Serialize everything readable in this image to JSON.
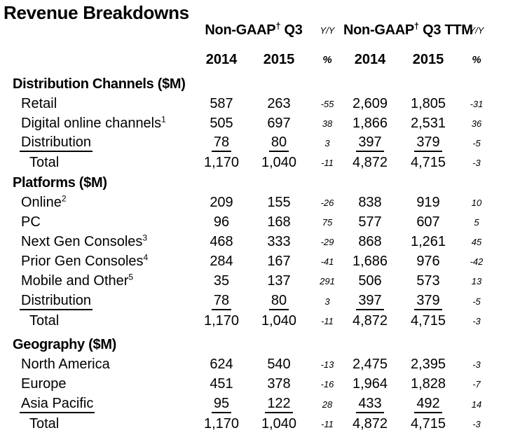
{
  "title": "Revenue Breakdowns",
  "header": {
    "group1": {
      "name": "Non-GAAP",
      "dagger": "†",
      "period": " Q3"
    },
    "group2": {
      "name": "Non-GAAP",
      "dagger": "†",
      "period": " Q3 TTM"
    },
    "yoy": "Y/Y",
    "percent": "%",
    "years": [
      "2014",
      "2015",
      "2014",
      "2015"
    ]
  },
  "sections": [
    {
      "label": "Distribution Channels ($M)",
      "rows": [
        {
          "label": "Retail",
          "sup": "",
          "underline": false,
          "total": false,
          "values": [
            "587",
            "263",
            "-55",
            "2,609",
            "1,805",
            "-31"
          ]
        },
        {
          "label": "Digital online channels",
          "sup": "1",
          "underline": false,
          "total": false,
          "values": [
            "505",
            "697",
            "38",
            "1,866",
            "2,531",
            "36"
          ]
        },
        {
          "label": "Distribution",
          "sup": "",
          "underline": true,
          "total": false,
          "values": [
            "78",
            "80",
            "3",
            "397",
            "379",
            "-5"
          ]
        },
        {
          "label": "Total",
          "sup": "",
          "underline": false,
          "total": true,
          "values": [
            "1,170",
            "1,040",
            "-11",
            "4,872",
            "4,715",
            "-3"
          ]
        }
      ]
    },
    {
      "label": "Platforms ($M)",
      "rows": [
        {
          "label": "Online",
          "sup": "2",
          "underline": false,
          "total": false,
          "values": [
            "209",
            "155",
            "-26",
            "838",
            "919",
            "10"
          ]
        },
        {
          "label": "PC",
          "sup": "",
          "underline": false,
          "total": false,
          "values": [
            "96",
            "168",
            "75",
            "577",
            "607",
            "5"
          ]
        },
        {
          "label": "Next Gen Consoles",
          "sup": "3",
          "underline": false,
          "total": false,
          "values": [
            "468",
            "333",
            "-29",
            "868",
            "1,261",
            "45"
          ]
        },
        {
          "label": "Prior Gen Consoles",
          "sup": "4",
          "underline": false,
          "total": false,
          "values": [
            "284",
            "167",
            "-41",
            "1,686",
            "976",
            "-42"
          ]
        },
        {
          "label": "Mobile and Other",
          "sup": "5",
          "underline": false,
          "total": false,
          "values": [
            "35",
            "137",
            "291",
            "506",
            "573",
            "13"
          ]
        },
        {
          "label": "Distribution",
          "sup": "",
          "underline": true,
          "total": false,
          "values": [
            "78",
            "80",
            "3",
            "397",
            "379",
            "-5"
          ]
        },
        {
          "label": "Total",
          "sup": "",
          "underline": false,
          "total": true,
          "values": [
            "1,170",
            "1,040",
            "-11",
            "4,872",
            "4,715",
            "-3"
          ]
        }
      ]
    },
    {
      "label": "Geography ($M)",
      "rows": [
        {
          "label": "North America",
          "sup": "",
          "underline": false,
          "total": false,
          "values": [
            "624",
            "540",
            "-13",
            "2,475",
            "2,395",
            "-3"
          ]
        },
        {
          "label": "Europe",
          "sup": "",
          "underline": false,
          "total": false,
          "values": [
            "451",
            "378",
            "-16",
            "1,964",
            "1,828",
            "-7"
          ]
        },
        {
          "label": "Asia Pacific",
          "sup": "",
          "underline": true,
          "total": false,
          "values": [
            "95",
            "122",
            "28",
            "433",
            "492",
            "14"
          ]
        },
        {
          "label": "Total",
          "sup": "",
          "underline": false,
          "total": true,
          "values": [
            "1,170",
            "1,040",
            "-11",
            "4,872",
            "4,715",
            "-3"
          ]
        }
      ]
    }
  ]
}
